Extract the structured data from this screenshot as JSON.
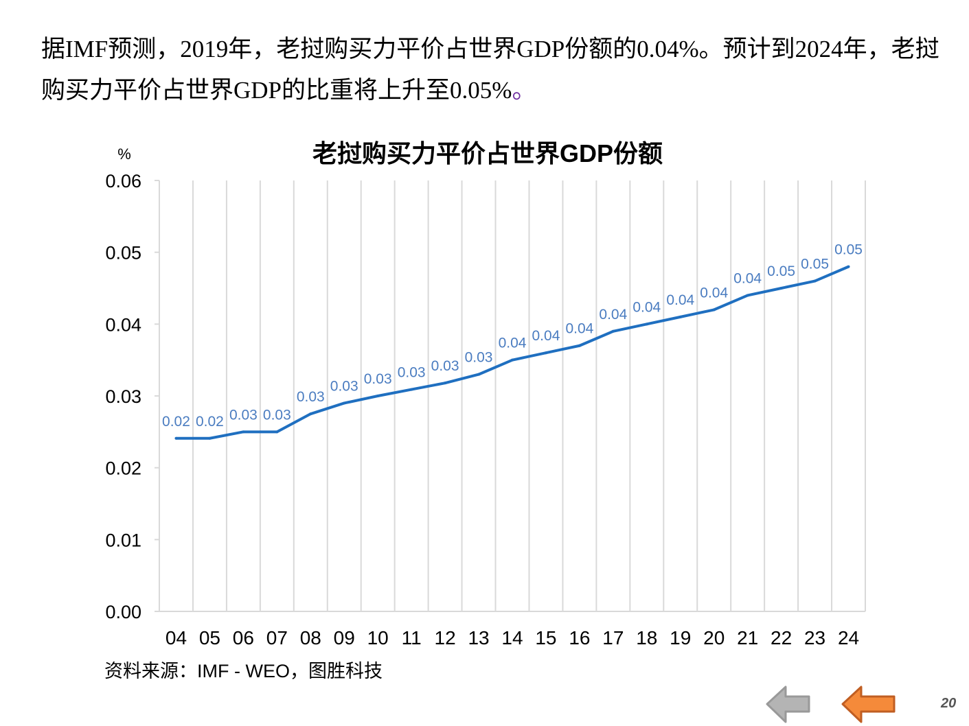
{
  "intro": {
    "text": "据IMF预测，2019年，老挝购买力平价占世界GDP份额的0.04%。预计到2024年，老挝购买力平价占世界GDP的比重将上升至0.05%",
    "end_mark": "。"
  },
  "chart_data": {
    "type": "line",
    "title": "老挝购买力平价占世界GDP份额",
    "ylabel": "%",
    "xlabel": "",
    "ylim": [
      0,
      0.06
    ],
    "yticks": [
      "0.00",
      "0.01",
      "0.02",
      "0.03",
      "0.04",
      "0.05",
      "0.06"
    ],
    "grid": "vertical",
    "categories": [
      "04",
      "05",
      "06",
      "07",
      "08",
      "09",
      "10",
      "11",
      "12",
      "13",
      "14",
      "15",
      "16",
      "17",
      "18",
      "19",
      "20",
      "21",
      "22",
      "23",
      "24"
    ],
    "series": [
      {
        "name": "老挝购买力平价占世界GDP份额",
        "color": "#1f6fc0",
        "values": [
          0.0241,
          0.0241,
          0.025,
          0.025,
          0.0275,
          0.029,
          0.03,
          0.0309,
          0.0318,
          0.033,
          0.035,
          0.036,
          0.037,
          0.039,
          0.04,
          0.041,
          0.042,
          0.044,
          0.045,
          0.046,
          0.048
        ],
        "labels": [
          "0.02",
          "0.02",
          "0.03",
          "0.03",
          "0.03",
          "0.03",
          "0.03",
          "0.03",
          "0.03",
          "0.03",
          "0.04",
          "0.04",
          "0.04",
          "0.04",
          "0.04",
          "0.04",
          "0.04",
          "0.04",
          "0.05",
          "0.05",
          "0.05"
        ]
      }
    ]
  },
  "source": "资料来源：IMF - WEO，图胜科技",
  "nav": {
    "prev_icon": "arrow-left-gray-icon",
    "next_icon": "arrow-left-orange-icon",
    "page_number": "20"
  },
  "colors": {
    "line": "#1f6fc0",
    "label": "#4a7cc0",
    "grid": "#d9d9d9",
    "arrow_gray": "#b4b4b4",
    "arrow_orange": "#f58a3a"
  }
}
